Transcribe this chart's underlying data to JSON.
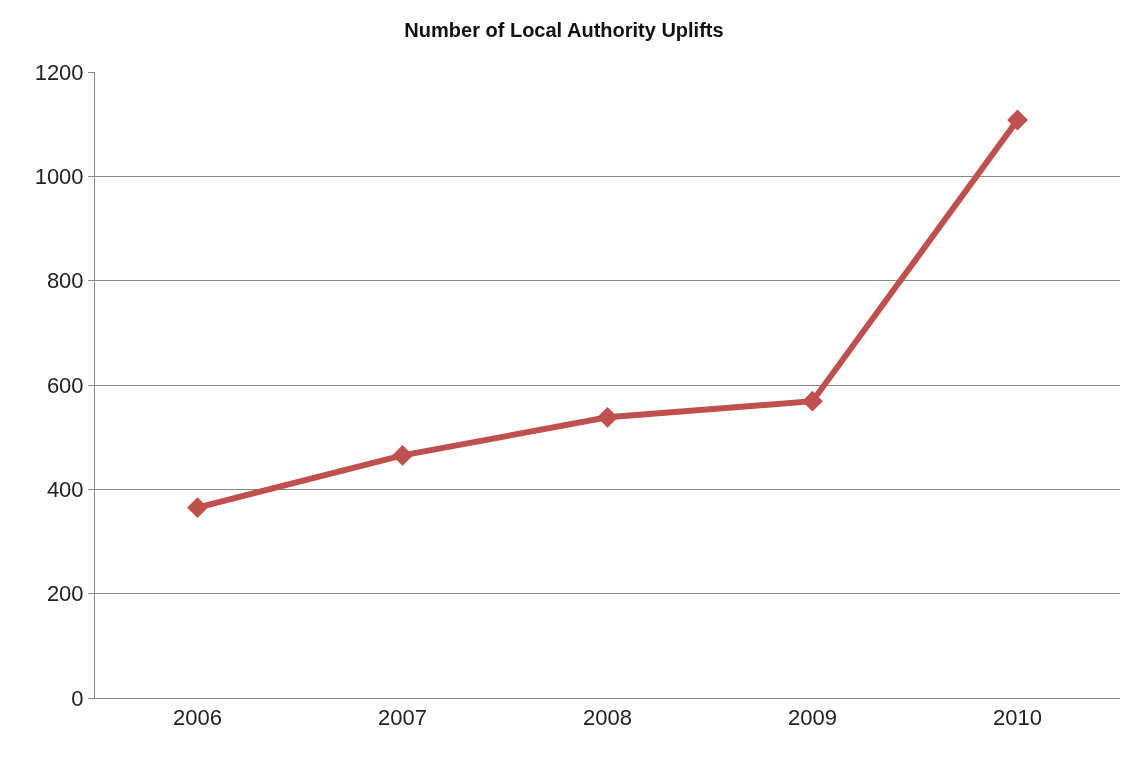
{
  "chart_data": {
    "type": "line",
    "title": "Number of Local Authority Uplifts",
    "categories": [
      "2006",
      "2007",
      "2008",
      "2009",
      "2010"
    ],
    "series": [
      {
        "color": "#c0504d",
        "values": [
          365,
          465,
          538,
          569,
          1108
        ]
      }
    ],
    "ylim": [
      0,
      1200
    ],
    "yticks": [
      0,
      200,
      400,
      600,
      800,
      1000,
      1200
    ],
    "grid": "y",
    "marker": "diamond",
    "line_style": "solid"
  }
}
